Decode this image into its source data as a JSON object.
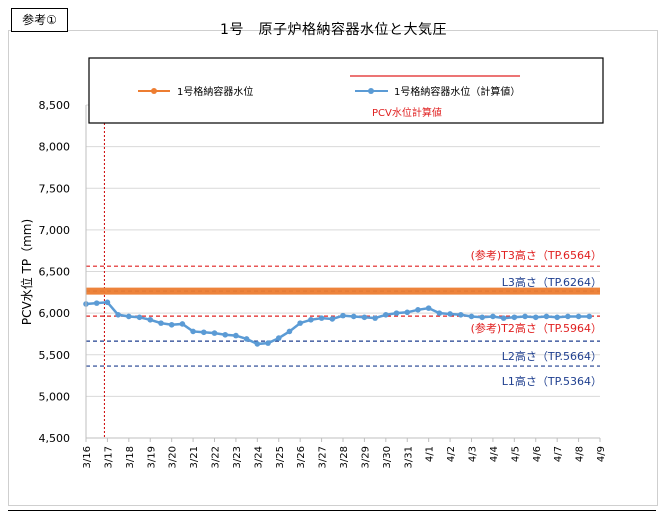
{
  "badge": "参考①",
  "chart_data": {
    "type": "line",
    "title": "1号　原子炉格納容器水位と大気圧",
    "ylabel": "PCV水位 TP（mm)",
    "xlabel": "",
    "ylim": [
      4500,
      8500
    ],
    "y_ticks": [
      4500,
      5000,
      5500,
      6000,
      6500,
      7000,
      7500,
      8000,
      8500
    ],
    "y_tick_labels": [
      "4,500",
      "5,000",
      "5,500",
      "6,000",
      "6,500",
      "7,000",
      "7,500",
      "8,000",
      "8,500"
    ],
    "x_tick_labels": [
      "3/16",
      "3/17",
      "3/18",
      "3/19",
      "3/20",
      "3/21",
      "3/22",
      "3/23",
      "3/24",
      "3/25",
      "3/26",
      "3/27",
      "3/28",
      "3/29",
      "3/30",
      "3/31",
      "4/1",
      "4/2",
      "4/3",
      "4/4",
      "4/5",
      "4/6",
      "4/7",
      "4/8",
      "4/9"
    ],
    "grid": "horizontal",
    "legend": {
      "placement": "top",
      "entries": [
        "1号格納容器水位",
        "1号格納容器水位（計算値）"
      ],
      "note": "PCV水位計算値"
    },
    "vertical_marker": {
      "x": "3/17",
      "color": "#cc0000"
    },
    "series": [
      {
        "name": "1号格納容器水位",
        "color": "#ed7d31",
        "x": [
          "3/16",
          "4/9"
        ],
        "values": [
          6264,
          6264
        ]
      },
      {
        "name": "1号格納容器水位（計算値）",
        "color": "#5b9bd5",
        "x": [
          "3/16",
          "3/16 12:00",
          "3/17",
          "3/17 12:00",
          "3/18",
          "3/18 12:00",
          "3/19",
          "3/19 12:00",
          "3/20",
          "3/20 12:00",
          "3/21",
          "3/21 12:00",
          "3/22",
          "3/22 12:00",
          "3/23",
          "3/23 12:00",
          "3/24",
          "3/24 12:00",
          "3/25",
          "3/25 12:00",
          "3/26",
          "3/26 12:00",
          "3/27",
          "3/27 12:00",
          "3/28",
          "3/28 12:00",
          "3/29",
          "3/29 12:00",
          "3/30",
          "3/30 12:00",
          "3/31",
          "3/31 12:00",
          "4/1",
          "4/1 12:00",
          "4/2",
          "4/2 12:00",
          "4/3",
          "4/3 12:00",
          "4/4",
          "4/4 12:00",
          "4/5",
          "4/5 12:00",
          "4/6",
          "4/6 12:00",
          "4/7",
          "4/7 12:00",
          "4/8",
          "4/8 12:00"
        ],
        "values": [
          6110,
          6120,
          6130,
          5980,
          5960,
          5950,
          5920,
          5880,
          5860,
          5870,
          5780,
          5770,
          5760,
          5740,
          5730,
          5690,
          5630,
          5640,
          5700,
          5780,
          5880,
          5920,
          5940,
          5930,
          5970,
          5960,
          5950,
          5940,
          5980,
          6000,
          6010,
          6040,
          6060,
          6000,
          5990,
          5980,
          5960,
          5950,
          5960,
          5940,
          5950,
          5960,
          5950,
          5960,
          5950,
          5960,
          5960,
          5960
        ]
      }
    ],
    "reference_lines": [
      {
        "label": "(参考)T3高さ（TP.6564）",
        "value": 6564,
        "color": "#e02020",
        "style": "dashed"
      },
      {
        "label": "L3高さ（TP.6264）",
        "value": 6264,
        "color": "#1f3f8f",
        "style": "dashed"
      },
      {
        "label": "(参考)T2高さ（TP.5964）",
        "value": 5964,
        "color": "#e02020",
        "style": "dashed"
      },
      {
        "label": "L2高さ（TP.5664）",
        "value": 5664,
        "color": "#1f3f8f",
        "style": "dashed"
      },
      {
        "label": "L1高さ（TP.5364）",
        "value": 5364,
        "color": "#1f3f8f",
        "style": "dashed"
      }
    ]
  }
}
